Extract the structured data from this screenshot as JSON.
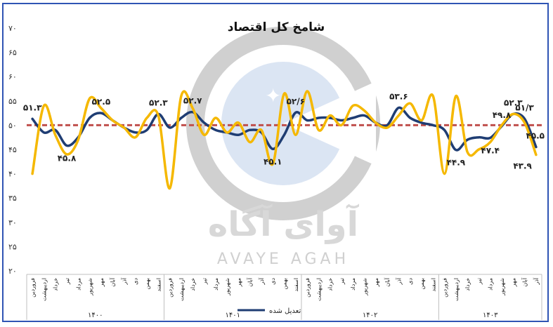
{
  "chart_data": {
    "type": "line",
    "title": "شامخ کل اقتصاد",
    "ylim": [
      20,
      70
    ],
    "y_ticks": [
      "۲۰",
      "۲۵",
      "۳۰",
      "۳۵",
      "۴۰",
      "۴۵",
      "۵۰",
      "۵۵",
      "۶۰",
      "۶۵",
      "۷۰"
    ],
    "y_tick_values": [
      20,
      25,
      30,
      35,
      40,
      45,
      50,
      55,
      60,
      65,
      70
    ],
    "reference_line": 50,
    "months": [
      "فروردین",
      "اردیبهشت",
      "خرداد",
      "تیر",
      "مرداد",
      "شهریور",
      "مهر",
      "آبان",
      "آذر",
      "دی",
      "بهمن",
      "اسفند"
    ],
    "years": [
      "۱۴۰۰",
      "۱۴۰۱",
      "۱۴۰۲",
      "۱۴۰۳"
    ],
    "months_per_year": [
      12,
      12,
      12,
      9
    ],
    "legend": "تعدیل شده",
    "colors": {
      "adjusted": "#1f3d73",
      "raw": "#f5b800",
      "reference": "#c0504d",
      "frame": "#2f54b4",
      "watermark": "#d0d0d0",
      "globe": "#dbe5f3"
    },
    "series": [
      {
        "name": "تعدیل شده",
        "values": [
          51.3,
          48.5,
          49.0,
          45.8,
          47.5,
          51.5,
          52.5,
          51.0,
          49.5,
          48.5,
          49.0,
          52.3,
          49.5,
          51.5,
          52.7,
          50.5,
          49.0,
          48.5,
          48.0,
          49.0,
          48.5,
          45.1,
          48.0,
          52.6,
          51.0,
          51.5,
          51.5,
          51.0,
          51.5,
          52.0,
          50.5,
          50.0,
          53.6,
          51.5,
          50.5,
          50.0,
          49.0,
          44.9,
          47.0,
          47.5,
          47.4,
          49.8,
          52.3,
          51.3,
          45.5
        ]
      },
      {
        "name": "",
        "values": [
          40.0,
          54.0,
          48.0,
          44.0,
          47.0,
          55.5,
          53.5,
          51.0,
          49.5,
          47.5,
          51.5,
          52.0,
          37.0,
          56.0,
          53.5,
          48.0,
          51.5,
          48.5,
          50.5,
          46.5,
          49.0,
          42.0,
          56.5,
          48.0,
          57.0,
          49.0,
          52.0,
          50.0,
          54.0,
          53.0,
          50.5,
          49.5,
          52.0,
          54.5,
          51.0,
          56.0,
          40.0,
          56.0,
          44.5,
          45.0,
          46.5,
          50.0,
          52.3,
          50.5,
          43.9
        ]
      }
    ],
    "data_labels": [
      {
        "index": 0,
        "series": 0,
        "text": "۵۱.۳",
        "position": "above"
      },
      {
        "index": 3,
        "series": 0,
        "text": "۴۵.۸",
        "position": "below"
      },
      {
        "index": 6,
        "series": 0,
        "text": "۵۲.۵",
        "position": "above"
      },
      {
        "index": 11,
        "series": 0,
        "text": "۵۲.۳",
        "position": "above"
      },
      {
        "index": 14,
        "series": 0,
        "text": "۵۲.۷",
        "position": "above"
      },
      {
        "index": 21,
        "series": 0,
        "text": "۴۵.۱",
        "position": "below"
      },
      {
        "index": 23,
        "series": 0,
        "text": "۵۲/۶",
        "position": "above"
      },
      {
        "index": 32,
        "series": 0,
        "text": "۵۳.۶",
        "position": "above"
      },
      {
        "index": 37,
        "series": 0,
        "text": "۴۴.۹",
        "position": "below"
      },
      {
        "index": 40,
        "series": 0,
        "text": "۴۷.۴",
        "position": "below"
      },
      {
        "index": 41,
        "series": 0,
        "text": "۴۹.۸",
        "position": "above"
      },
      {
        "index": 42,
        "series": 0,
        "text": "۵۲.۳",
        "position": "above"
      },
      {
        "index": 43,
        "series": 0,
        "text": "۵۱/۳",
        "position": "above"
      },
      {
        "index": 44,
        "series": 0,
        "text": "۴۵.۵",
        "position": "above"
      },
      {
        "index": 44,
        "series": 1,
        "text": "۴۳.۹",
        "position": "left"
      }
    ]
  },
  "watermark": {
    "brand_fa": "آوای آگاه",
    "brand_en": "AVAYE AGAH"
  }
}
